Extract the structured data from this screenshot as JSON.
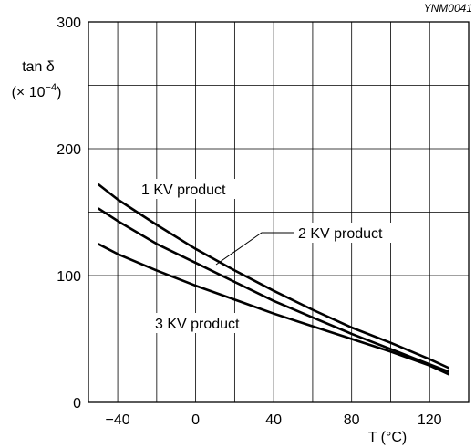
{
  "figure_code": "YNM0041",
  "chart_data": {
    "type": "line",
    "ylabel_line1": "tan δ",
    "ylabel_line2_prefix": "(× 10",
    "ylabel_line2_exp": "−4",
    "ylabel_line2_suffix": ")",
    "xlabel": "T  (°C)",
    "xlim": [
      -55,
      140
    ],
    "ylim": [
      0,
      300
    ],
    "xgrid": [
      -60,
      -40,
      -20,
      0,
      20,
      40,
      60,
      80,
      100,
      120,
      140
    ],
    "ygrid": [
      0,
      50,
      100,
      150,
      200,
      250,
      300
    ],
    "xticks": [
      {
        "value": -40,
        "label": "−40"
      },
      {
        "value": 0,
        "label": "0"
      },
      {
        "value": 40,
        "label": "40"
      },
      {
        "value": 80,
        "label": "80"
      },
      {
        "value": 120,
        "label": "120"
      }
    ],
    "yticks": [
      {
        "value": 0,
        "label": "0"
      },
      {
        "value": 100,
        "label": "100"
      },
      {
        "value": 200,
        "label": "200"
      },
      {
        "value": 300,
        "label": "300"
      }
    ],
    "grid": true,
    "series": [
      {
        "name": "1 KV product",
        "color": "#000000",
        "x": [
          -50,
          -40,
          -20,
          0,
          20,
          40,
          60,
          80,
          100,
          120,
          130
        ],
        "y": [
          172,
          160,
          140,
          121,
          104,
          88,
          73,
          59,
          47,
          34,
          27
        ]
      },
      {
        "name": "2 KV product",
        "color": "#000000",
        "x": [
          -50,
          -40,
          -20,
          0,
          20,
          40,
          60,
          80,
          100,
          120,
          130
        ],
        "y": [
          153,
          143,
          125,
          110,
          95,
          80,
          67,
          54,
          42,
          30,
          24
        ]
      },
      {
        "name": "3 KV product",
        "color": "#000000",
        "x": [
          -50,
          -40,
          -20,
          0,
          20,
          40,
          60,
          80,
          100,
          120,
          130
        ],
        "y": [
          125,
          117,
          104,
          92,
          81,
          70,
          60,
          50,
          40,
          29,
          22
        ]
      }
    ]
  }
}
